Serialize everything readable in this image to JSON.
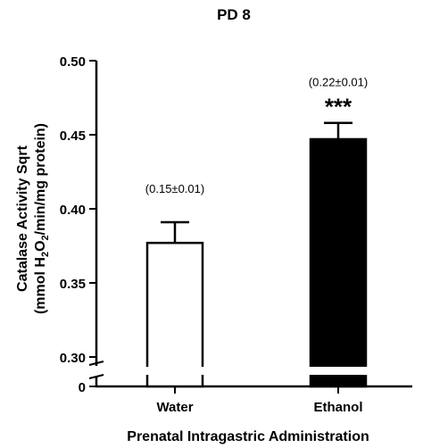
{
  "chart_data": {
    "type": "bar",
    "title": "PD 8",
    "xlabel": "Prenatal Intragastric Administration",
    "ylabel_line1": "Catalase Activity Sqrt",
    "ylabel_line2_prefix": "(mmol H",
    "ylabel_sub1": "2",
    "ylabel_mid": "O",
    "ylabel_sub2": "2",
    "ylabel_suffix": "/min/mg protein)",
    "categories": [
      "Water",
      "Ethanol"
    ],
    "values": [
      0.377,
      0.447
    ],
    "errors": [
      0.014,
      0.011
    ],
    "bar_fills": [
      "#ffffff",
      "#000000"
    ],
    "annotations": [
      "(0.15±0.01)",
      "(0.22±0.01)"
    ],
    "significance": [
      "",
      "***"
    ],
    "ylim": [
      0.3,
      0.5
    ],
    "yticks": [
      0.3,
      0.35,
      0.4,
      0.45,
      0.5
    ],
    "ytick_labels": [
      "0.30",
      "0.35",
      "0.40",
      "0.45",
      "0.50"
    ],
    "y_break_tick_label": "0",
    "axis_break": true,
    "grid": false
  }
}
